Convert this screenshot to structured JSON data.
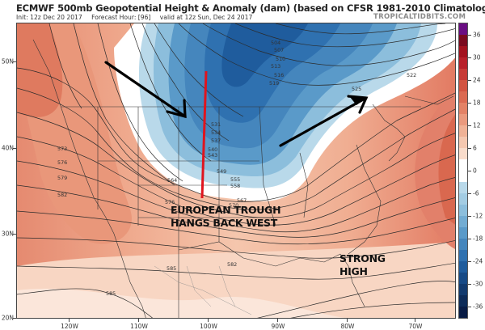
{
  "header": {
    "title": "ECMWF 500mb Geopotential Height & Anomaly (dam) (based on CFSR 1981-2010 Climatology)",
    "init": "Init: 12z Dec 20 2017",
    "forecast_hour": "Forecast Hour: [96]",
    "valid": "valid at 12z Sun, Dec 24 2017",
    "brand": "TROPICALTIDBITS.COM"
  },
  "colorbar": {
    "labels": [
      "36",
      "30",
      "24",
      "18",
      "12",
      "6",
      "0",
      "-6",
      "-12",
      "-18",
      "-24",
      "-30",
      "-36"
    ],
    "colors_top_to_bottom": [
      "#6a0d83",
      "#7a0a1f",
      "#a3121f",
      "#b8202a",
      "#c73a36",
      "#d25442",
      "#db6a52",
      "#e38266",
      "#ea9a7e",
      "#f0b296",
      "#f5c8b0",
      "#f9dccb",
      "#ffffff",
      "#ffffff",
      "#b9d9ea",
      "#a3cce3",
      "#8cbedc",
      "#72acd3",
      "#5a9ac9",
      "#4586bd",
      "#2f71b0",
      "#1f5c9d",
      "#174a86",
      "#123a6e",
      "#0d2b58",
      "#091c45"
    ]
  },
  "axes": {
    "lat_labels": [
      "50N",
      "40N",
      "30N",
      "20N"
    ],
    "lon_labels": [
      "120W",
      "110W",
      "100W",
      "90W",
      "80W",
      "70W"
    ]
  },
  "contour_labels": [
    "504",
    "507",
    "510",
    "513",
    "516",
    "519",
    "522",
    "525",
    "531",
    "534",
    "537",
    "540",
    "543",
    "549",
    "555",
    "558",
    "564",
    "567",
    "570",
    "573",
    "576",
    "579",
    "582",
    "585"
  ],
  "annotations": {
    "trough_line1": "EUROPEAN TROUGH",
    "trough_line2": "HANGS BACK WEST",
    "high_line1": "STRONG",
    "high_line2": "HIGH",
    "arrow_left_color": "#000000",
    "arrow_right_color": "#000000",
    "trough_axis_color": "#e0141e"
  }
}
